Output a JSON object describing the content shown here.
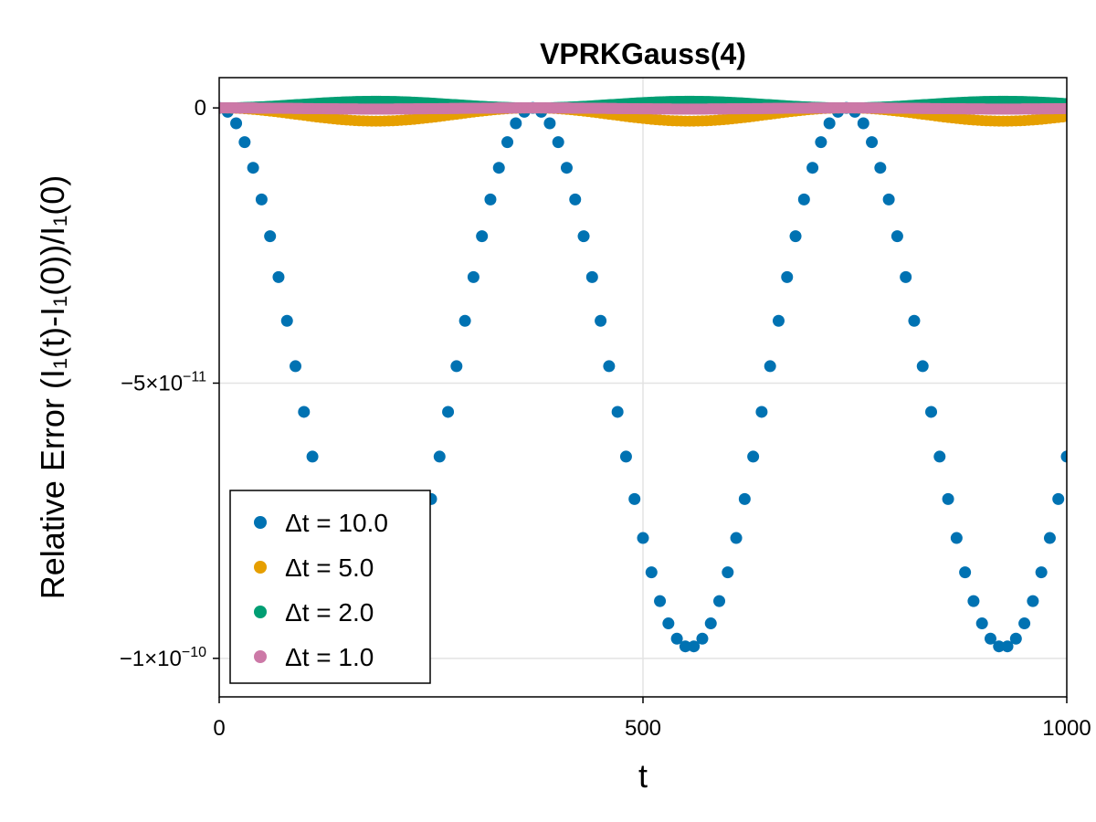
{
  "chart_data": {
    "type": "scatter",
    "title": "VPRKGauss(4)",
    "xlabel": "t",
    "ylabel": "Relative Error (I₁(t)-I₁(0))/I₁(0)",
    "xlim": [
      0,
      1000
    ],
    "ylim": [
      -1.07e-10,
      5.5e-12
    ],
    "xticks": [
      {
        "value": 0,
        "label": "0"
      },
      {
        "value": 500,
        "label": "500"
      },
      {
        "value": 1000,
        "label": "1000"
      }
    ],
    "yticks": [
      {
        "value": 0,
        "label": "0",
        "exp": ""
      },
      {
        "value": -5e-11,
        "label": "−5×10",
        "exp": "−11"
      },
      {
        "value": -1e-10,
        "label": "−1×10",
        "exp": "−10"
      }
    ],
    "grid": true,
    "legend_position": "bottom-left",
    "series": [
      {
        "name": "Δt = 10.0",
        "color": "#0072B2",
        "step": 10,
        "amplitude": -4.9e-11,
        "period": 370,
        "offset": -4.9e-11
      },
      {
        "name": "Δt = 5.0",
        "color": "#E69F00",
        "step": 5,
        "amplitude": -1.2e-12,
        "period": 370,
        "offset": -1.2e-12
      },
      {
        "name": "Δt = 2.0",
        "color": "#009E73",
        "step": 2,
        "amplitude": 6e-13,
        "period": 370,
        "offset": 6e-13
      },
      {
        "name": "Δt = 1.0",
        "color": "#CC79A7",
        "step": 1,
        "amplitude": -1e-13,
        "period": 370,
        "offset": -1e-13
      }
    ]
  }
}
